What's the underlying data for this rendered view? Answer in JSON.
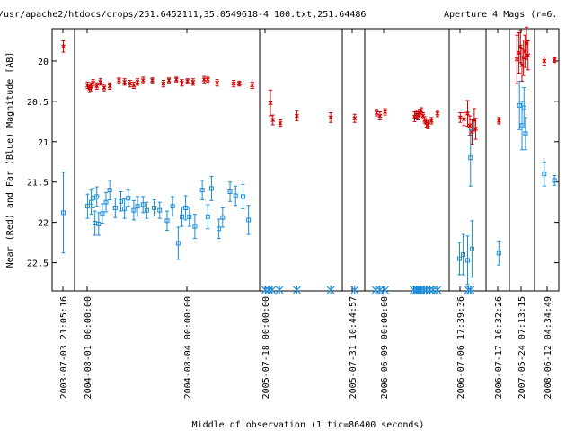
{
  "chart_data": {
    "type": "scatter",
    "title": "/usr/apache2/htdocs/crops/251.6452111,35.0549618-4 100.txt,251.64486",
    "title_right": "Aperture 4 Mags (r=6.",
    "xlabel": "Middle of observation (1 tic=86400 seconds)",
    "ylabel": "Near (Red) and Far (Blue) Magnitude [AB]",
    "ylim": [
      22.85,
      19.6
    ],
    "y_ticks": [
      20,
      20.5,
      21,
      21.5,
      22,
      22.5
    ],
    "y_tick_labels": [
      "20",
      "20.5",
      "21",
      "21.5",
      "22",
      "22.5"
    ],
    "x_tick_labels": [
      "2003-07-03 21:05:16",
      "2004-08-01 00:00:00",
      "2004-08-04 00:00:00",
      "2005-07-18 00:00:00",
      "2005-07-31 10:44:57",
      "2006-06-09 00:00:00",
      "2006-07-06 17:39:36",
      "2006-07-17 16:32:26",
      "2007-05-24 07:13:15",
      "2008-06-12 04:34:49"
    ],
    "colors": {
      "near": "#cc0000",
      "far": "#1a8cd8"
    },
    "series": [
      {
        "name": "Near (Red)",
        "points": [
          {
            "seg": 0,
            "f": 0.5,
            "y": 19.82,
            "err": 0.07
          },
          {
            "seg": 1,
            "f": 0.07,
            "y": 20.3,
            "err": 0.04
          },
          {
            "seg": 1,
            "f": 0.08,
            "y": 20.34,
            "err": 0.05
          },
          {
            "seg": 1,
            "f": 0.09,
            "y": 20.32,
            "err": 0.05
          },
          {
            "seg": 1,
            "f": 0.1,
            "y": 20.27,
            "err": 0.04
          },
          {
            "seg": 1,
            "f": 0.12,
            "y": 20.31,
            "err": 0.04
          },
          {
            "seg": 1,
            "f": 0.14,
            "y": 20.26,
            "err": 0.04
          },
          {
            "seg": 1,
            "f": 0.16,
            "y": 20.33,
            "err": 0.04
          },
          {
            "seg": 1,
            "f": 0.19,
            "y": 20.31,
            "err": 0.04
          },
          {
            "seg": 1,
            "f": 0.24,
            "y": 20.24,
            "err": 0.03
          },
          {
            "seg": 1,
            "f": 0.27,
            "y": 20.26,
            "err": 0.04
          },
          {
            "seg": 1,
            "f": 0.3,
            "y": 20.28,
            "err": 0.04
          },
          {
            "seg": 1,
            "f": 0.32,
            "y": 20.3,
            "err": 0.04
          },
          {
            "seg": 1,
            "f": 0.34,
            "y": 20.26,
            "err": 0.04
          },
          {
            "seg": 1,
            "f": 0.37,
            "y": 20.24,
            "err": 0.04
          },
          {
            "seg": 1,
            "f": 0.42,
            "y": 20.24,
            "err": 0.03
          },
          {
            "seg": 1,
            "f": 0.48,
            "y": 20.28,
            "err": 0.04
          },
          {
            "seg": 1,
            "f": 0.51,
            "y": 20.24,
            "err": 0.03
          },
          {
            "seg": 1,
            "f": 0.55,
            "y": 20.23,
            "err": 0.03
          },
          {
            "seg": 1,
            "f": 0.58,
            "y": 20.27,
            "err": 0.04
          },
          {
            "seg": 1,
            "f": 0.61,
            "y": 20.25,
            "err": 0.03
          },
          {
            "seg": 1,
            "f": 0.64,
            "y": 20.26,
            "err": 0.04
          },
          {
            "seg": 1,
            "f": 0.7,
            "y": 20.23,
            "err": 0.04
          },
          {
            "seg": 1,
            "f": 0.72,
            "y": 20.23,
            "err": 0.03
          },
          {
            "seg": 1,
            "f": 0.77,
            "y": 20.27,
            "err": 0.04
          },
          {
            "seg": 1,
            "f": 0.86,
            "y": 20.28,
            "err": 0.04
          },
          {
            "seg": 1,
            "f": 0.89,
            "y": 20.28,
            "err": 0.03
          },
          {
            "seg": 1,
            "f": 0.96,
            "y": 20.3,
            "err": 0.04
          },
          {
            "seg": 2,
            "f": 0.13,
            "y": 20.52,
            "err": 0.16
          },
          {
            "seg": 2,
            "f": 0.16,
            "y": 20.73,
            "err": 0.06
          },
          {
            "seg": 2,
            "f": 0.25,
            "y": 20.77,
            "err": 0.04
          },
          {
            "seg": 2,
            "f": 0.45,
            "y": 20.68,
            "err": 0.06
          },
          {
            "seg": 2,
            "f": 0.86,
            "y": 20.7,
            "err": 0.06
          },
          {
            "seg": 3,
            "f": 0.55,
            "y": 20.71,
            "err": 0.05
          },
          {
            "seg": 4,
            "f": 0.14,
            "y": 20.64,
            "err": 0.04
          },
          {
            "seg": 4,
            "f": 0.18,
            "y": 20.68,
            "err": 0.05
          },
          {
            "seg": 4,
            "f": 0.24,
            "y": 20.63,
            "err": 0.04
          },
          {
            "seg": 4,
            "f": 0.59,
            "y": 20.69,
            "err": 0.06
          },
          {
            "seg": 4,
            "f": 0.61,
            "y": 20.66,
            "err": 0.05
          },
          {
            "seg": 4,
            "f": 0.63,
            "y": 20.68,
            "err": 0.05
          },
          {
            "seg": 4,
            "f": 0.65,
            "y": 20.64,
            "err": 0.04
          },
          {
            "seg": 4,
            "f": 0.67,
            "y": 20.62,
            "err": 0.04
          },
          {
            "seg": 4,
            "f": 0.69,
            "y": 20.68,
            "err": 0.04
          },
          {
            "seg": 4,
            "f": 0.71,
            "y": 20.73,
            "err": 0.04
          },
          {
            "seg": 4,
            "f": 0.73,
            "y": 20.77,
            "err": 0.05
          },
          {
            "seg": 4,
            "f": 0.75,
            "y": 20.79,
            "err": 0.05
          },
          {
            "seg": 4,
            "f": 0.79,
            "y": 20.74,
            "err": 0.04
          },
          {
            "seg": 4,
            "f": 0.86,
            "y": 20.65,
            "err": 0.04
          },
          {
            "seg": 5,
            "f": 0.3,
            "y": 20.7,
            "err": 0.06
          },
          {
            "seg": 5,
            "f": 0.4,
            "y": 20.72,
            "err": 0.08
          },
          {
            "seg": 5,
            "f": 0.5,
            "y": 20.65,
            "err": 0.16
          },
          {
            "seg": 5,
            "f": 0.56,
            "y": 20.8,
            "err": 0.12
          },
          {
            "seg": 5,
            "f": 0.62,
            "y": 20.88,
            "err": 0.15
          },
          {
            "seg": 5,
            "f": 0.68,
            "y": 20.73,
            "err": 0.14
          },
          {
            "seg": 5,
            "f": 0.72,
            "y": 20.84,
            "err": 0.13
          },
          {
            "seg": 6,
            "f": 0.55,
            "y": 20.74,
            "err": 0.04
          },
          {
            "seg": 7,
            "f": 0.3,
            "y": 19.98,
            "err": 0.3
          },
          {
            "seg": 7,
            "f": 0.38,
            "y": 19.9,
            "err": 0.25
          },
          {
            "seg": 7,
            "f": 0.44,
            "y": 19.82,
            "err": 0.2
          },
          {
            "seg": 7,
            "f": 0.5,
            "y": 20.05,
            "err": 0.2
          },
          {
            "seg": 7,
            "f": 0.56,
            "y": 19.96,
            "err": 0.22
          },
          {
            "seg": 7,
            "f": 0.62,
            "y": 19.88,
            "err": 0.2
          },
          {
            "seg": 7,
            "f": 0.68,
            "y": 19.78,
            "err": 0.2
          },
          {
            "seg": 7,
            "f": 0.74,
            "y": 19.93,
            "err": 0.18
          },
          {
            "seg": 8,
            "f": 0.4,
            "y": 20.0,
            "err": 0.05
          },
          {
            "seg": 8,
            "f": 0.82,
            "y": 19.99,
            "err": 0.03
          }
        ]
      },
      {
        "name": "Far (Blue)",
        "points": [
          {
            "seg": 0,
            "f": 0.5,
            "y": 21.88,
            "err": 0.5
          },
          {
            "seg": 1,
            "f": 0.07,
            "y": 21.8,
            "err": 0.15
          },
          {
            "seg": 1,
            "f": 0.09,
            "y": 21.75,
            "err": 0.15
          },
          {
            "seg": 1,
            "f": 0.1,
            "y": 21.7,
            "err": 0.12
          },
          {
            "seg": 1,
            "f": 0.11,
            "y": 22.01,
            "err": 0.15
          },
          {
            "seg": 1,
            "f": 0.12,
            "y": 21.68,
            "err": 0.12
          },
          {
            "seg": 1,
            "f": 0.13,
            "y": 22.02,
            "err": 0.14
          },
          {
            "seg": 1,
            "f": 0.15,
            "y": 21.89,
            "err": 0.12
          },
          {
            "seg": 1,
            "f": 0.17,
            "y": 21.75,
            "err": 0.12
          },
          {
            "seg": 1,
            "f": 0.19,
            "y": 21.6,
            "err": 0.12
          },
          {
            "seg": 1,
            "f": 0.22,
            "y": 21.82,
            "err": 0.12
          },
          {
            "seg": 1,
            "f": 0.25,
            "y": 21.74,
            "err": 0.12
          },
          {
            "seg": 1,
            "f": 0.27,
            "y": 21.83,
            "err": 0.12
          },
          {
            "seg": 1,
            "f": 0.29,
            "y": 21.7,
            "err": 0.1
          },
          {
            "seg": 1,
            "f": 0.32,
            "y": 21.85,
            "err": 0.12
          },
          {
            "seg": 1,
            "f": 0.34,
            "y": 21.8,
            "err": 0.12
          },
          {
            "seg": 1,
            "f": 0.37,
            "y": 21.78,
            "err": 0.1
          },
          {
            "seg": 1,
            "f": 0.39,
            "y": 21.85,
            "err": 0.1
          },
          {
            "seg": 1,
            "f": 0.43,
            "y": 21.82,
            "err": 0.1
          },
          {
            "seg": 1,
            "f": 0.46,
            "y": 21.85,
            "err": 0.1
          },
          {
            "seg": 1,
            "f": 0.5,
            "y": 21.98,
            "err": 0.12
          },
          {
            "seg": 1,
            "f": 0.53,
            "y": 21.8,
            "err": 0.12
          },
          {
            "seg": 1,
            "f": 0.56,
            "y": 22.26,
            "err": 0.2
          },
          {
            "seg": 1,
            "f": 0.58,
            "y": 21.93,
            "err": 0.12
          },
          {
            "seg": 1,
            "f": 0.6,
            "y": 21.82,
            "err": 0.15
          },
          {
            "seg": 1,
            "f": 0.62,
            "y": 21.93,
            "err": 0.12
          },
          {
            "seg": 1,
            "f": 0.65,
            "y": 22.05,
            "err": 0.15
          },
          {
            "seg": 1,
            "f": 0.69,
            "y": 21.6,
            "err": 0.12
          },
          {
            "seg": 1,
            "f": 0.72,
            "y": 21.93,
            "err": 0.15
          },
          {
            "seg": 1,
            "f": 0.74,
            "y": 21.58,
            "err": 0.15
          },
          {
            "seg": 1,
            "f": 0.78,
            "y": 22.08,
            "err": 0.12
          },
          {
            "seg": 1,
            "f": 0.8,
            "y": 21.94,
            "err": 0.12
          },
          {
            "seg": 1,
            "f": 0.84,
            "y": 21.62,
            "err": 0.12
          },
          {
            "seg": 1,
            "f": 0.87,
            "y": 21.67,
            "err": 0.12
          },
          {
            "seg": 1,
            "f": 0.91,
            "y": 21.68,
            "err": 0.15
          },
          {
            "seg": 1,
            "f": 0.94,
            "y": 21.97,
            "err": 0.18
          },
          {
            "seg": 5,
            "f": 0.28,
            "y": 22.45,
            "err": 0.2
          },
          {
            "seg": 5,
            "f": 0.38,
            "y": 22.4,
            "err": 0.25
          },
          {
            "seg": 5,
            "f": 0.5,
            "y": 22.47,
            "err": 0.3
          },
          {
            "seg": 5,
            "f": 0.62,
            "y": 22.33,
            "err": 0.35
          },
          {
            "seg": 5,
            "f": 0.58,
            "y": 21.2,
            "err": 0.35
          },
          {
            "seg": 6,
            "f": 0.55,
            "y": 22.38,
            "err": 0.15
          },
          {
            "seg": 7,
            "f": 0.4,
            "y": 20.55,
            "err": 0.3
          },
          {
            "seg": 7,
            "f": 0.5,
            "y": 20.8,
            "err": 0.3
          },
          {
            "seg": 7,
            "f": 0.58,
            "y": 20.58,
            "err": 0.25
          },
          {
            "seg": 7,
            "f": 0.64,
            "y": 20.9,
            "err": 0.2
          },
          {
            "seg": 8,
            "f": 0.4,
            "y": 21.4,
            "err": 0.15
          },
          {
            "seg": 8,
            "f": 0.82,
            "y": 21.48,
            "err": 0.06
          }
        ]
      },
      {
        "name": "Far (Blue) upper limits",
        "points": [
          {
            "seg": 2,
            "f": 0.07
          },
          {
            "seg": 2,
            "f": 0.11
          },
          {
            "seg": 2,
            "f": 0.15
          },
          {
            "seg": 2,
            "f": 0.24
          },
          {
            "seg": 2,
            "f": 0.45
          },
          {
            "seg": 2,
            "f": 0.86
          },
          {
            "seg": 3,
            "f": 0.55
          },
          {
            "seg": 4,
            "f": 0.13
          },
          {
            "seg": 4,
            "f": 0.18
          },
          {
            "seg": 4,
            "f": 0.24
          },
          {
            "seg": 4,
            "f": 0.58
          },
          {
            "seg": 4,
            "f": 0.61
          },
          {
            "seg": 4,
            "f": 0.63
          },
          {
            "seg": 4,
            "f": 0.65
          },
          {
            "seg": 4,
            "f": 0.67
          },
          {
            "seg": 4,
            "f": 0.7
          },
          {
            "seg": 4,
            "f": 0.73
          },
          {
            "seg": 4,
            "f": 0.77
          },
          {
            "seg": 4,
            "f": 0.81
          },
          {
            "seg": 4,
            "f": 0.86
          },
          {
            "seg": 5,
            "f": 0.52
          },
          {
            "seg": 5,
            "f": 0.58
          }
        ]
      }
    ]
  }
}
